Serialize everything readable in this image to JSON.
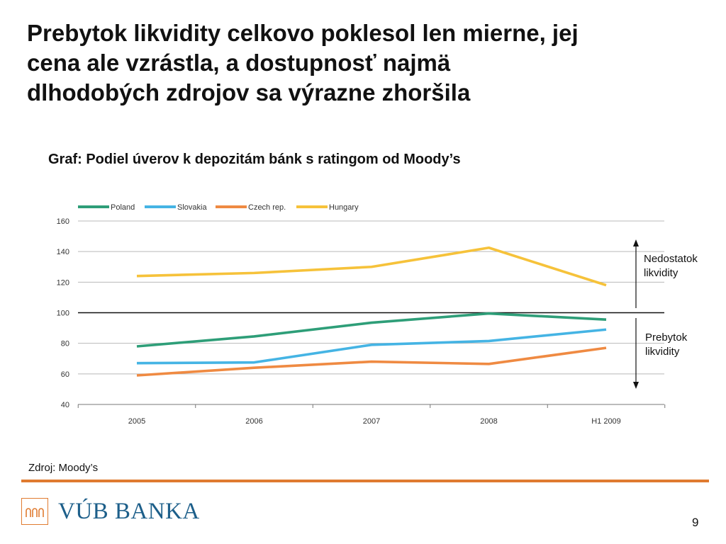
{
  "slide": {
    "title_lines": [
      "Prebytok likvidity celkovo poklesol len mierne, jej",
      "cena ale vzrástla, a dostupnosť najmä",
      "dlhodobých zdrojov sa výrazne zhoršila"
    ],
    "subtitle": "Graf: Podiel úverov k depozitám bánk s ratingom od Moody’s",
    "source": "Zdroj: Moody’s",
    "logo_text": "VÚB BANKA",
    "page_number": "9"
  },
  "chart_data": {
    "type": "line",
    "title": "",
    "xlabel": "",
    "ylabel": "",
    "categories": [
      "2005",
      "2006",
      "2007",
      "2008",
      "H1 2009"
    ],
    "ylim": [
      40,
      160
    ],
    "yticks": [
      40,
      60,
      80,
      100,
      120,
      140,
      160
    ],
    "grid": true,
    "legend_position": "top-left",
    "reference_line": 100,
    "series": [
      {
        "name": "Poland",
        "color": "#2e9e78",
        "values": [
          78,
          84.5,
          93.5,
          99.5,
          95.5
        ]
      },
      {
        "name": "Slovakia",
        "color": "#45b4e4",
        "values": [
          67,
          67.5,
          79,
          81.5,
          89
        ]
      },
      {
        "name": "Czech rep.",
        "color": "#ef8a42",
        "values": [
          59,
          64,
          68,
          66.5,
          77
        ]
      },
      {
        "name": "Hungary",
        "color": "#f6c23a",
        "values": [
          124,
          126,
          130,
          142.5,
          118
        ]
      }
    ],
    "annotations": {
      "above": [
        "Nedostatok",
        "likvidity"
      ],
      "below": [
        "Prebytok",
        "likvidity"
      ]
    }
  }
}
